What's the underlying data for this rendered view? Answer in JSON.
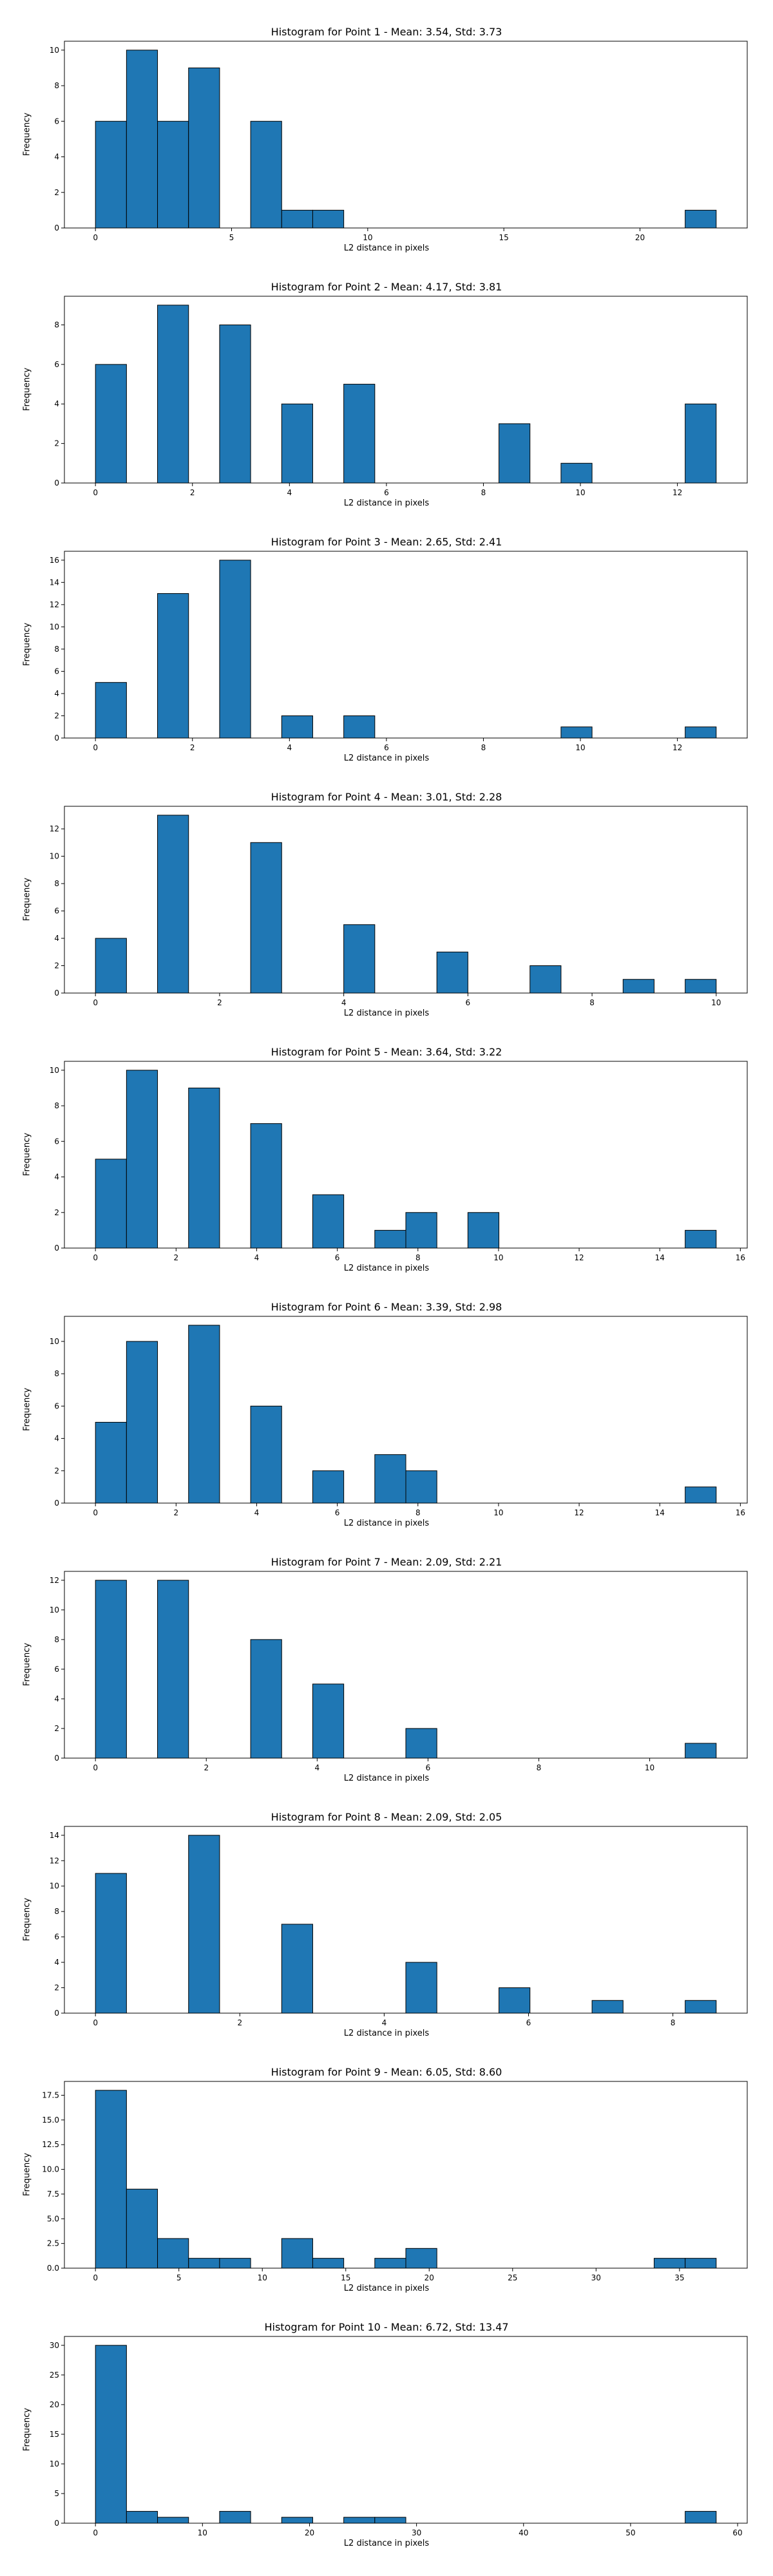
{
  "chart_data": [
    {
      "type": "bar",
      "title": "Histogram for Point 1 - Mean: 3.54, Std: 3.73",
      "xlabel": "L2 distance in pixels",
      "ylabel": "Frequency",
      "bars": [
        {
          "x0": 0,
          "x1": 1.14,
          "value": 6
        },
        {
          "x0": 1.14,
          "x1": 2.28,
          "value": 10
        },
        {
          "x0": 2.28,
          "x1": 3.42,
          "value": 6
        },
        {
          "x0": 3.42,
          "x1": 4.56,
          "value": 9
        },
        {
          "x0": 5.7,
          "x1": 6.84,
          "value": 6
        },
        {
          "x0": 6.84,
          "x1": 7.98,
          "value": 1
        },
        {
          "x0": 7.98,
          "x1": 9.12,
          "value": 1
        },
        {
          "x0": 21.66,
          "x1": 22.8,
          "value": 1
        }
      ],
      "xlim": [
        -1.14,
        23.94
      ],
      "ylim": [
        0,
        10.5
      ],
      "xticks": [
        0,
        5,
        10,
        15,
        20
      ],
      "yticks": [
        0,
        2,
        4,
        6,
        8,
        10
      ]
    },
    {
      "type": "bar",
      "title": "Histogram for Point 2 - Mean: 4.17, Std: 3.81",
      "xlabel": "L2 distance in pixels",
      "ylabel": "Frequency",
      "bars": [
        {
          "x0": 0,
          "x1": 0.64,
          "value": 6
        },
        {
          "x0": 1.28,
          "x1": 1.92,
          "value": 9
        },
        {
          "x0": 2.56,
          "x1": 3.2,
          "value": 8
        },
        {
          "x0": 3.84,
          "x1": 4.48,
          "value": 4
        },
        {
          "x0": 5.12,
          "x1": 5.76,
          "value": 5
        },
        {
          "x0": 8.32,
          "x1": 8.96,
          "value": 3
        },
        {
          "x0": 9.6,
          "x1": 10.24,
          "value": 1
        },
        {
          "x0": 12.16,
          "x1": 12.8,
          "value": 4
        }
      ],
      "xlim": [
        -0.64,
        13.44
      ],
      "ylim": [
        0,
        9.45
      ],
      "xticks": [
        0,
        2,
        4,
        6,
        8,
        10,
        12
      ],
      "yticks": [
        0,
        2,
        4,
        6,
        8
      ]
    },
    {
      "type": "bar",
      "title": "Histogram for Point 3 - Mean: 2.65, Std: 2.41",
      "xlabel": "L2 distance in pixels",
      "ylabel": "Frequency",
      "bars": [
        {
          "x0": 0,
          "x1": 0.64,
          "value": 5
        },
        {
          "x0": 1.28,
          "x1": 1.92,
          "value": 13
        },
        {
          "x0": 2.56,
          "x1": 3.2,
          "value": 16
        },
        {
          "x0": 3.84,
          "x1": 4.48,
          "value": 2
        },
        {
          "x0": 5.12,
          "x1": 5.76,
          "value": 2
        },
        {
          "x0": 9.6,
          "x1": 10.24,
          "value": 1
        },
        {
          "x0": 12.16,
          "x1": 12.8,
          "value": 1
        }
      ],
      "xlim": [
        -0.64,
        13.44
      ],
      "ylim": [
        0,
        16.8
      ],
      "xticks": [
        0,
        2,
        4,
        6,
        8,
        10,
        12
      ],
      "yticks": [
        0,
        2,
        4,
        6,
        8,
        10,
        12,
        14,
        16
      ]
    },
    {
      "type": "bar",
      "title": "Histogram for Point 4 - Mean: 3.01, Std: 2.28",
      "xlabel": "L2 distance in pixels",
      "ylabel": "Frequency",
      "bars": [
        {
          "x0": 0,
          "x1": 0.5,
          "value": 4
        },
        {
          "x0": 1,
          "x1": 1.5,
          "value": 13
        },
        {
          "x0": 2.5,
          "x1": 3,
          "value": 11
        },
        {
          "x0": 4,
          "x1": 4.5,
          "value": 5
        },
        {
          "x0": 5.5,
          "x1": 6,
          "value": 3
        },
        {
          "x0": 7,
          "x1": 7.5,
          "value": 2
        },
        {
          "x0": 8.5,
          "x1": 9,
          "value": 1
        },
        {
          "x0": 9.5,
          "x1": 10,
          "value": 1
        }
      ],
      "xlim": [
        -0.5,
        10.5
      ],
      "ylim": [
        0,
        13.65
      ],
      "xticks": [
        0,
        2,
        4,
        6,
        8,
        10
      ],
      "yticks": [
        0,
        2,
        4,
        6,
        8,
        10,
        12
      ]
    },
    {
      "type": "bar",
      "title": "Histogram for Point 5 - Mean: 3.64, Std: 3.22",
      "xlabel": "L2 distance in pixels",
      "ylabel": "Frequency",
      "bars": [
        {
          "x0": 0,
          "x1": 0.77,
          "value": 5
        },
        {
          "x0": 0.77,
          "x1": 1.54,
          "value": 10
        },
        {
          "x0": 2.31,
          "x1": 3.08,
          "value": 9
        },
        {
          "x0": 3.85,
          "x1": 4.62,
          "value": 7
        },
        {
          "x0": 5.39,
          "x1": 6.16,
          "value": 3
        },
        {
          "x0": 6.93,
          "x1": 7.7,
          "value": 1
        },
        {
          "x0": 7.7,
          "x1": 8.47,
          "value": 2
        },
        {
          "x0": 9.24,
          "x1": 10.01,
          "value": 2
        },
        {
          "x0": 14.63,
          "x1": 15.4,
          "value": 1
        }
      ],
      "xlim": [
        -0.77,
        16.17
      ],
      "ylim": [
        0,
        10.5
      ],
      "xticks": [
        0,
        2,
        4,
        6,
        8,
        10,
        12,
        14,
        16
      ],
      "yticks": [
        0,
        2,
        4,
        6,
        8,
        10
      ]
    },
    {
      "type": "bar",
      "title": "Histogram for Point 6 - Mean: 3.39, Std: 2.98",
      "xlabel": "L2 distance in pixels",
      "ylabel": "Frequency",
      "bars": [
        {
          "x0": 0,
          "x1": 0.77,
          "value": 5
        },
        {
          "x0": 0.77,
          "x1": 1.54,
          "value": 10
        },
        {
          "x0": 2.31,
          "x1": 3.08,
          "value": 11
        },
        {
          "x0": 3.85,
          "x1": 4.62,
          "value": 6
        },
        {
          "x0": 5.39,
          "x1": 6.16,
          "value": 2
        },
        {
          "x0": 6.93,
          "x1": 7.7,
          "value": 3
        },
        {
          "x0": 7.7,
          "x1": 8.47,
          "value": 2
        },
        {
          "x0": 14.63,
          "x1": 15.4,
          "value": 1
        }
      ],
      "xlim": [
        -0.77,
        16.17
      ],
      "ylim": [
        0,
        11.55
      ],
      "xticks": [
        0,
        2,
        4,
        6,
        8,
        10,
        12,
        14,
        16
      ],
      "yticks": [
        0,
        2,
        4,
        6,
        8,
        10
      ]
    },
    {
      "type": "bar",
      "title": "Histogram for Point 7 - Mean: 2.09, Std: 2.21",
      "xlabel": "L2 distance in pixels",
      "ylabel": "Frequency",
      "bars": [
        {
          "x0": 0,
          "x1": 0.56,
          "value": 12
        },
        {
          "x0": 1.12,
          "x1": 1.68,
          "value": 12
        },
        {
          "x0": 2.8,
          "x1": 3.36,
          "value": 8
        },
        {
          "x0": 3.92,
          "x1": 4.48,
          "value": 5
        },
        {
          "x0": 5.6,
          "x1": 6.16,
          "value": 2
        },
        {
          "x0": 10.64,
          "x1": 11.2,
          "value": 1
        }
      ],
      "xlim": [
        -0.56,
        11.76
      ],
      "ylim": [
        0,
        12.6
      ],
      "xticks": [
        0,
        2,
        4,
        6,
        8,
        10
      ],
      "yticks": [
        0,
        2,
        4,
        6,
        8,
        10,
        12
      ]
    },
    {
      "type": "bar",
      "title": "Histogram for Point 8 - Mean: 2.09, Std: 2.05",
      "xlabel": "L2 distance in pixels",
      "ylabel": "Frequency",
      "bars": [
        {
          "x0": 0,
          "x1": 0.43,
          "value": 11
        },
        {
          "x0": 1.29,
          "x1": 1.72,
          "value": 14
        },
        {
          "x0": 2.58,
          "x1": 3.01,
          "value": 7
        },
        {
          "x0": 4.3,
          "x1": 4.73,
          "value": 4
        },
        {
          "x0": 5.59,
          "x1": 6.02,
          "value": 2
        },
        {
          "x0": 6.88,
          "x1": 7.31,
          "value": 1
        },
        {
          "x0": 8.17,
          "x1": 8.6,
          "value": 1
        }
      ],
      "xlim": [
        -0.43,
        9.03
      ],
      "ylim": [
        0,
        14.7
      ],
      "xticks": [
        0,
        2,
        4,
        6,
        8
      ],
      "yticks": [
        0,
        2,
        4,
        6,
        8,
        10,
        12,
        14
      ]
    },
    {
      "type": "bar",
      "title": "Histogram for Point 9 - Mean: 6.05, Std: 8.60",
      "xlabel": "L2 distance in pixels",
      "ylabel": "Frequency",
      "bars": [
        {
          "x0": 0,
          "x1": 1.86,
          "value": 18
        },
        {
          "x0": 1.86,
          "x1": 3.72,
          "value": 8
        },
        {
          "x0": 3.72,
          "x1": 5.58,
          "value": 3
        },
        {
          "x0": 5.58,
          "x1": 7.44,
          "value": 1
        },
        {
          "x0": 7.44,
          "x1": 9.3,
          "value": 1
        },
        {
          "x0": 11.16,
          "x1": 13.02,
          "value": 3
        },
        {
          "x0": 13.02,
          "x1": 14.88,
          "value": 1
        },
        {
          "x0": 16.74,
          "x1": 18.6,
          "value": 1
        },
        {
          "x0": 18.6,
          "x1": 20.46,
          "value": 2
        },
        {
          "x0": 33.48,
          "x1": 35.34,
          "value": 1
        },
        {
          "x0": 35.34,
          "x1": 37.2,
          "value": 1
        }
      ],
      "xlim": [
        -1.86,
        39.06
      ],
      "ylim": [
        0,
        18.9
      ],
      "xticks": [
        0,
        5,
        10,
        15,
        20,
        25,
        30,
        35
      ],
      "yticks": [
        0,
        2.5,
        5,
        7.5,
        10,
        12.5,
        15,
        17.5
      ],
      "ytick_labels": [
        "0.0",
        "2.5",
        "5.0",
        "7.5",
        "10.0",
        "12.5",
        "15.0",
        "17.5"
      ]
    },
    {
      "type": "bar",
      "title": "Histogram for Point 10 - Mean: 6.72, Std: 13.47",
      "xlabel": "L2 distance in pixels",
      "ylabel": "Frequency",
      "bars": [
        {
          "x0": 0,
          "x1": 2.9,
          "value": 30
        },
        {
          "x0": 2.9,
          "x1": 5.8,
          "value": 2
        },
        {
          "x0": 5.8,
          "x1": 8.7,
          "value": 1
        },
        {
          "x0": 11.6,
          "x1": 14.5,
          "value": 2
        },
        {
          "x0": 17.4,
          "x1": 20.3,
          "value": 1
        },
        {
          "x0": 23.2,
          "x1": 26.1,
          "value": 1
        },
        {
          "x0": 26.1,
          "x1": 29,
          "value": 1
        },
        {
          "x0": 55.1,
          "x1": 58,
          "value": 2
        }
      ],
      "xlim": [
        -2.9,
        60.9
      ],
      "ylim": [
        0,
        31.5
      ],
      "xticks": [
        0,
        10,
        20,
        30,
        40,
        50,
        60
      ],
      "yticks": [
        0,
        5,
        10,
        15,
        20,
        25,
        30
      ]
    }
  ],
  "colors": {
    "bar_fill": "#1f77b4",
    "bar_edge": "#000000",
    "axis": "#000000",
    "background": "#ffffff"
  }
}
